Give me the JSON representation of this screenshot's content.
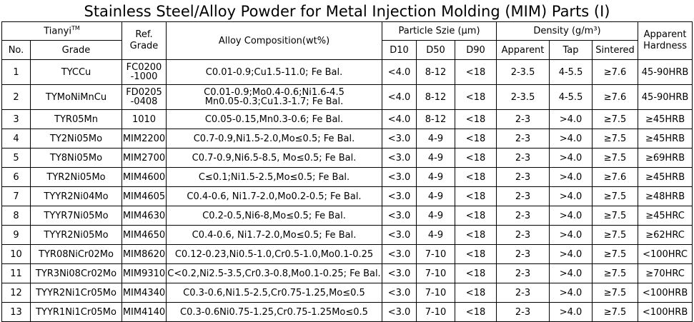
{
  "title": "Stainless Steel/Alloy Powder for Metal Injection Molding (MIM) Parts (I)",
  "headers": {
    "brand": "Tianyi",
    "brand_mark": "TM",
    "no": "No.",
    "grade": "Grade",
    "ref_grade_line1": "Ref.",
    "ref_grade_line2": "Grade",
    "composition": "Alloy Composition(wt%)",
    "particle_size": "Particle Szie (μm)",
    "d10": "D10",
    "d50": "D50",
    "d90": "D90",
    "density": "Density (g/m³)",
    "apparent": "Apparent",
    "tap": "Tap",
    "sintered": "Sintered",
    "hardness_line1": "Apparent",
    "hardness_line2": "Hardness"
  },
  "rows": [
    {
      "no": "1",
      "grade": "TYCCu",
      "ref": [
        "FC0200",
        "-1000"
      ],
      "comp": [
        "C0.01-0.9;Cu1.5-11.0; Fe Bal."
      ],
      "d10": "<4.0",
      "d50": "8-12",
      "d90": "<18",
      "apparent": "2-3.5",
      "tap": "4-5.5",
      "sintered": "≥7.6",
      "hardness": "45-90HRB"
    },
    {
      "no": "2",
      "grade": "TYMoNiMnCu",
      "ref": [
        "FD0205",
        "-0408"
      ],
      "comp": [
        "C0.01-0.9;Mo0.4-0.6;Ni1.6-4.5",
        "Mn0.05-0.3;Cu1.3-1.7; Fe Bal."
      ],
      "d10": "<4.0",
      "d50": "8-12",
      "d90": "<18",
      "apparent": "2-3.5",
      "tap": "4-5.5",
      "sintered": "≥7.6",
      "hardness": "45-90HRB"
    },
    {
      "no": "3",
      "grade": "TYR05Mn",
      "ref": [
        "1010"
      ],
      "comp": [
        "C0.05-0.15,Mn0.3-0.6; Fe Bal."
      ],
      "d10": "<4.0",
      "d50": "8-12",
      "d90": "<18",
      "apparent": "2-3",
      "tap": ">4.0",
      "sintered": "≥7.5",
      "hardness": "≥45HRB"
    },
    {
      "no": "4",
      "grade": "TY2Ni05Mo",
      "ref": [
        "MIM2200"
      ],
      "comp": [
        "C0.7-0.9,Ni1.5-2.0,Mo≤0.5; Fe Bal."
      ],
      "d10": "<3.0",
      "d50": "4-9",
      "d90": "<18",
      "apparent": "2-3",
      "tap": ">4.0",
      "sintered": "≥7.5",
      "hardness": "≥45HRB"
    },
    {
      "no": "5",
      "grade": "TY8Ni05Mo",
      "ref": [
        "MIM2700"
      ],
      "comp": [
        "C0.7-0.9,Ni6.5-8.5, Mo≤0.5; Fe Bal."
      ],
      "d10": "<3.0",
      "d50": "4-9",
      "d90": "<18",
      "apparent": "2-3",
      "tap": ">4.0",
      "sintered": "≥7.5",
      "hardness": "≥69HRB"
    },
    {
      "no": "6",
      "grade": "TYR2Ni05Mo",
      "ref": [
        "MIM4600"
      ],
      "comp": [
        "C≤0.1;Ni1.5-2.5,Mo≤0.5; Fe Bal."
      ],
      "d10": "<3.0",
      "d50": "4-9",
      "d90": "<18",
      "apparent": "2-3",
      "tap": ">4.0",
      "sintered": "≥7.6",
      "hardness": "≥45HRB"
    },
    {
      "no": "7",
      "grade": "TYYR2Ni04Mo",
      "ref": [
        "MIM4605"
      ],
      "comp": [
        "C0.4-0.6, Ni1.7-2.0,Mo0.2-0.5; Fe Bal."
      ],
      "d10": "<3.0",
      "d50": "4-9",
      "d90": "<18",
      "apparent": "2-3",
      "tap": ">4.0",
      "sintered": "≥7.5",
      "hardness": "≥48HRB"
    },
    {
      "no": "8",
      "grade": "TYYR7Ni05Mo",
      "ref": [
        "MIM4630"
      ],
      "comp": [
        "C0.2-0.5,Ni6-8,Mo≤0.5; Fe Bal."
      ],
      "d10": "<3.0",
      "d50": "4-9",
      "d90": "<18",
      "apparent": "2-3",
      "tap": ">4.0",
      "sintered": "≥7.5",
      "hardness": "≥45HRC"
    },
    {
      "no": "9",
      "grade": "TYYR2Ni05Mo",
      "ref": [
        "MIM4650"
      ],
      "comp": [
        "C0.4-0.6, Ni1.7-2.0,Mo≤0.5; Fe Bal."
      ],
      "d10": "<3.0",
      "d50": "4-9",
      "d90": "<18",
      "apparent": "2-3",
      "tap": ">4.0",
      "sintered": "≥7.5",
      "hardness": "≥62HRC"
    },
    {
      "no": "10",
      "grade": "TYR08NiCr02Mo",
      "ref": [
        "MIM8620"
      ],
      "comp": [
        "C0.12-0.23,Ni0.5-1.0,Cr0.5-1.0,Mo0.1-0.25"
      ],
      "d10": "<3.0",
      "d50": "7-10",
      "d90": "<18",
      "apparent": "2-3",
      "tap": ">4.0",
      "sintered": "≥7.5",
      "hardness": "<100HRC"
    },
    {
      "no": "11",
      "grade": "TYR3Ni08Cr02Mo",
      "ref": [
        "MIM9310"
      ],
      "comp": [
        "C<0.2,Ni2.5-3.5,Cr0.3-0.8,Mo0.1-0.25; Fe Bal."
      ],
      "d10": "<3.0",
      "d50": "7-10",
      "d90": "<18",
      "apparent": "2-3",
      "tap": ">4.0",
      "sintered": "≥7.5",
      "hardness": "≥70HRC"
    },
    {
      "no": "12",
      "grade": "TYYR2Ni1Cr05Mo",
      "ref": [
        "MIM4340"
      ],
      "comp": [
        "C0.3-0.6,Ni1.5-2.5,Cr0.75-1.25,Mo≤0.5"
      ],
      "d10": "<3.0",
      "d50": "7-10",
      "d90": "<18",
      "apparent": "2-3",
      "tap": ">4.0",
      "sintered": "≥7.5",
      "hardness": "<100HRB"
    },
    {
      "no": "13",
      "grade": "TYYR1Ni1Cr05Mo",
      "ref": [
        "MIM4140"
      ],
      "comp": [
        "C0.3-0.6Ni0.75-1.25,Cr0.75-1.25Mo≤0.5"
      ],
      "d10": "<3.0",
      "d50": "7-10",
      "d90": "<18",
      "apparent": "2-3",
      "tap": ">4.0",
      "sintered": "≥7.5",
      "hardness": "<100HRB"
    }
  ]
}
